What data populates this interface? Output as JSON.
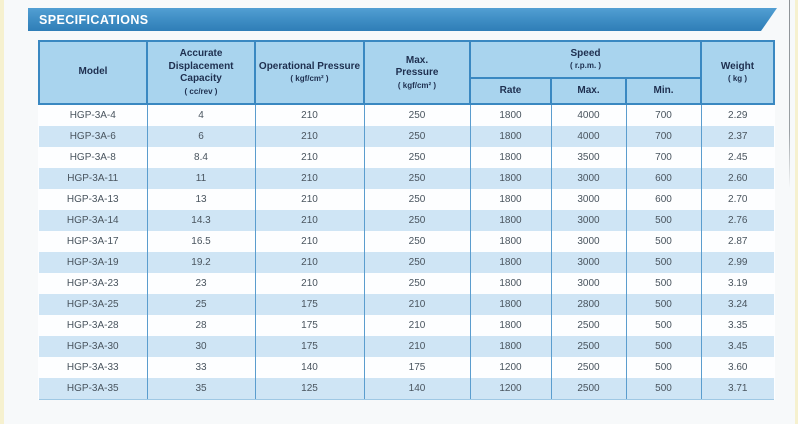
{
  "header": {
    "title": "SPECIFICATIONS"
  },
  "colors": {
    "title_bar_blue": "#3d8cc3",
    "header_cell_blue": "#a9d4ee",
    "row_stripe_blue": "#cfe5f5",
    "row_white": "#fdfeff",
    "grid_line_blue": "#3a88c1",
    "header_text_navy": "#1e2f4f",
    "body_text": "#49545e",
    "scan_edge_cream": "#f6f1cf"
  },
  "table": {
    "head": {
      "model": {
        "label": "Model"
      },
      "capacity": {
        "label": "Accurate Displacement Capacity",
        "unit": "( cc/rev )"
      },
      "op_pressure": {
        "label": "Operational Pressure",
        "unit": "( kgf/cm² )"
      },
      "max_pressure": {
        "label": "Max. Pressure",
        "unit": "( kgf/cm² )"
      },
      "speed": {
        "label": "Speed",
        "unit": "( r.p.m. )",
        "sub": {
          "rate": "Rate",
          "max": "Max.",
          "min": "Min."
        }
      },
      "weight": {
        "label": "Weight",
        "unit": "( kg )"
      }
    },
    "rows": [
      {
        "model": "HGP-3A-4",
        "capacity": "4",
        "op_pressure": "210",
        "max_pressure": "250",
        "speed_rate": "1800",
        "speed_max": "4000",
        "speed_min": "700",
        "weight": "2.29"
      },
      {
        "model": "HGP-3A-6",
        "capacity": "6",
        "op_pressure": "210",
        "max_pressure": "250",
        "speed_rate": "1800",
        "speed_max": "4000",
        "speed_min": "700",
        "weight": "2.37"
      },
      {
        "model": "HGP-3A-8",
        "capacity": "8.4",
        "op_pressure": "210",
        "max_pressure": "250",
        "speed_rate": "1800",
        "speed_max": "3500",
        "speed_min": "700",
        "weight": "2.45"
      },
      {
        "model": "HGP-3A-11",
        "capacity": "11",
        "op_pressure": "210",
        "max_pressure": "250",
        "speed_rate": "1800",
        "speed_max": "3000",
        "speed_min": "600",
        "weight": "2.60"
      },
      {
        "model": "HGP-3A-13",
        "capacity": "13",
        "op_pressure": "210",
        "max_pressure": "250",
        "speed_rate": "1800",
        "speed_max": "3000",
        "speed_min": "600",
        "weight": "2.70"
      },
      {
        "model": "HGP-3A-14",
        "capacity": "14.3",
        "op_pressure": "210",
        "max_pressure": "250",
        "speed_rate": "1800",
        "speed_max": "3000",
        "speed_min": "500",
        "weight": "2.76"
      },
      {
        "model": "HGP-3A-17",
        "capacity": "16.5",
        "op_pressure": "210",
        "max_pressure": "250",
        "speed_rate": "1800",
        "speed_max": "3000",
        "speed_min": "500",
        "weight": "2.87"
      },
      {
        "model": "HGP-3A-19",
        "capacity": "19.2",
        "op_pressure": "210",
        "max_pressure": "250",
        "speed_rate": "1800",
        "speed_max": "3000",
        "speed_min": "500",
        "weight": "2.99"
      },
      {
        "model": "HGP-3A-23",
        "capacity": "23",
        "op_pressure": "210",
        "max_pressure": "250",
        "speed_rate": "1800",
        "speed_max": "3000",
        "speed_min": "500",
        "weight": "3.19"
      },
      {
        "model": "HGP-3A-25",
        "capacity": "25",
        "op_pressure": "175",
        "max_pressure": "210",
        "speed_rate": "1800",
        "speed_max": "2800",
        "speed_min": "500",
        "weight": "3.24"
      },
      {
        "model": "HGP-3A-28",
        "capacity": "28",
        "op_pressure": "175",
        "max_pressure": "210",
        "speed_rate": "1800",
        "speed_max": "2500",
        "speed_min": "500",
        "weight": "3.35"
      },
      {
        "model": "HGP-3A-30",
        "capacity": "30",
        "op_pressure": "175",
        "max_pressure": "210",
        "speed_rate": "1800",
        "speed_max": "2500",
        "speed_min": "500",
        "weight": "3.45"
      },
      {
        "model": "HGP-3A-33",
        "capacity": "33",
        "op_pressure": "140",
        "max_pressure": "175",
        "speed_rate": "1200",
        "speed_max": "2500",
        "speed_min": "500",
        "weight": "3.60"
      },
      {
        "model": "HGP-3A-35",
        "capacity": "35",
        "op_pressure": "125",
        "max_pressure": "140",
        "speed_rate": "1200",
        "speed_max": "2500",
        "speed_min": "500",
        "weight": "3.71"
      }
    ]
  }
}
